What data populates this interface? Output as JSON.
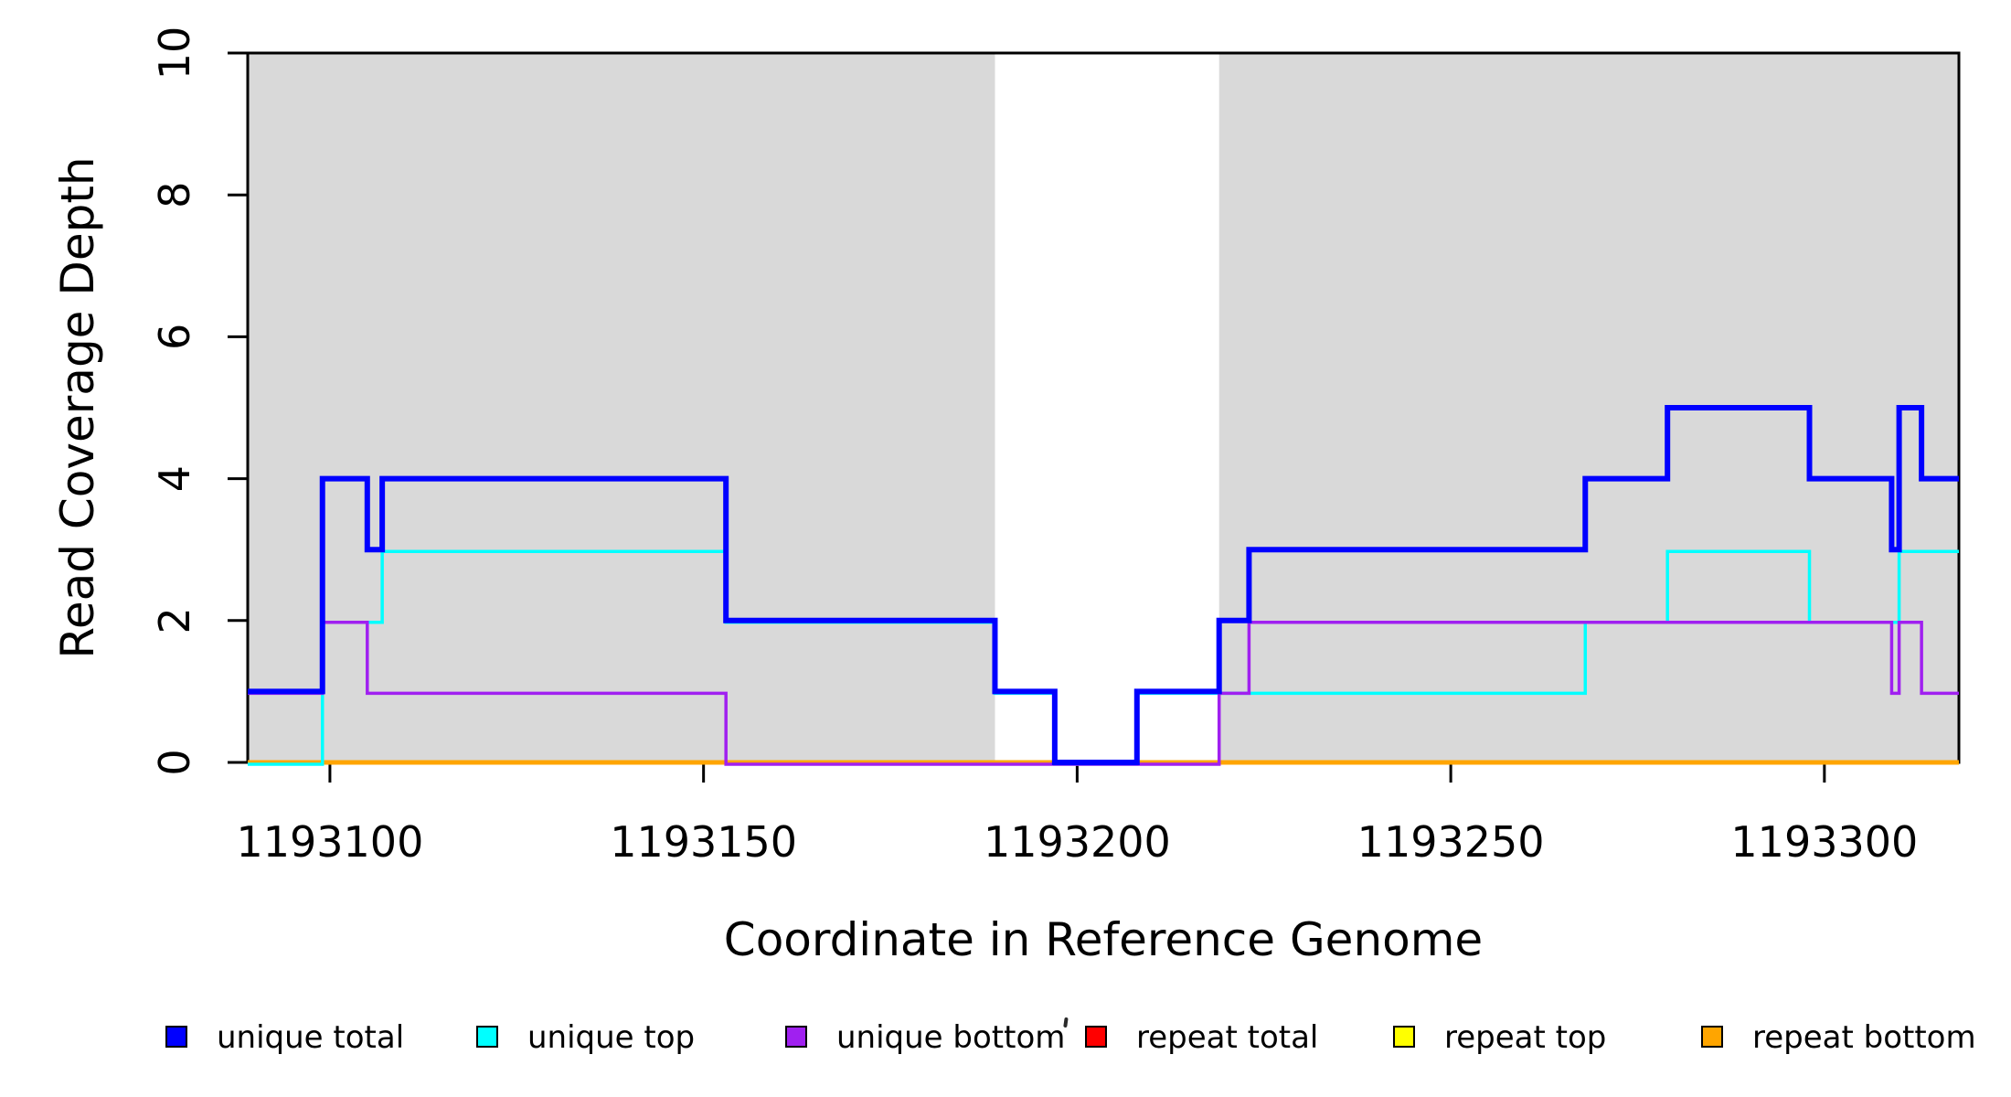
{
  "chart_data": {
    "type": "line",
    "subtype": "step-coverage",
    "title": "",
    "xlabel": "Coordinate in Reference Genome",
    "ylabel": "Read Coverage Depth",
    "xlim": [
      1193089,
      1193318
    ],
    "ylim": [
      0,
      10
    ],
    "grid": false,
    "legend_position": "bottom",
    "background_color": "#FFFFFF",
    "shade_color": "#D9D9D9",
    "frame_color": "#000000",
    "shaded_regions": [
      {
        "start": 1193089,
        "end": 1193189
      },
      {
        "start": 1193219,
        "end": 1193318
      }
    ],
    "x_ticks": [
      {
        "value": 1193100,
        "label": "1193100"
      },
      {
        "value": 1193150,
        "label": "1193150"
      },
      {
        "value": 1193200,
        "label": "1193200"
      },
      {
        "value": 1193250,
        "label": "1193250"
      },
      {
        "value": 1193300,
        "label": "1193300"
      }
    ],
    "y_ticks": [
      {
        "value": 0,
        "label": "0"
      },
      {
        "value": 2,
        "label": "2"
      },
      {
        "value": 4,
        "label": "4"
      },
      {
        "value": 6,
        "label": "6"
      },
      {
        "value": 8,
        "label": "8"
      },
      {
        "value": 10,
        "label": "10"
      }
    ],
    "series": [
      {
        "name": "unique total",
        "color": "#0000FF",
        "line_width": 6,
        "steps": [
          [
            1193089,
            1
          ],
          [
            1193099,
            4
          ],
          [
            1193105,
            3
          ],
          [
            1193107,
            4
          ],
          [
            1193153,
            2
          ],
          [
            1193189,
            1
          ],
          [
            1193197,
            0
          ],
          [
            1193208,
            1
          ],
          [
            1193219,
            2
          ],
          [
            1193223,
            3
          ],
          [
            1193268,
            4
          ],
          [
            1193279,
            5
          ],
          [
            1193298,
            4
          ],
          [
            1193309,
            3
          ],
          [
            1193310,
            5
          ],
          [
            1193313,
            4
          ]
        ]
      },
      {
        "name": "unique top",
        "color": "#00FFFF",
        "line_width": 3.5,
        "steps": [
          [
            1193089,
            0
          ],
          [
            1193099,
            2
          ],
          [
            1193107,
            3
          ],
          [
            1193153,
            2
          ],
          [
            1193189,
            1
          ],
          [
            1193197,
            0
          ],
          [
            1193208,
            1
          ],
          [
            1193268,
            2
          ],
          [
            1193279,
            3
          ],
          [
            1193298,
            2
          ],
          [
            1193310,
            3
          ]
        ]
      },
      {
        "name": "unique bottom",
        "color": "#A020F0",
        "line_width": 3.5,
        "steps": [
          [
            1193089,
            1
          ],
          [
            1193099,
            2
          ],
          [
            1193105,
            1
          ],
          [
            1193153,
            0
          ],
          [
            1193219,
            1
          ],
          [
            1193223,
            2
          ],
          [
            1193309,
            1
          ],
          [
            1193310,
            2
          ],
          [
            1193313,
            1
          ]
        ]
      },
      {
        "name": "repeat total",
        "color": "#FF0000",
        "line_width": 3.5,
        "steps": [
          [
            1193089,
            0
          ]
        ]
      },
      {
        "name": "repeat top",
        "color": "#FFFF00",
        "line_width": 3.5,
        "steps": [
          [
            1193089,
            0
          ]
        ]
      },
      {
        "name": "repeat bottom",
        "color": "#FFA500",
        "line_width": 5,
        "steps": [
          [
            1193089,
            0
          ]
        ]
      }
    ],
    "draw_order": [
      "repeat total",
      "repeat top",
      "repeat bottom",
      "unique top",
      "unique bottom",
      "unique total"
    ]
  }
}
